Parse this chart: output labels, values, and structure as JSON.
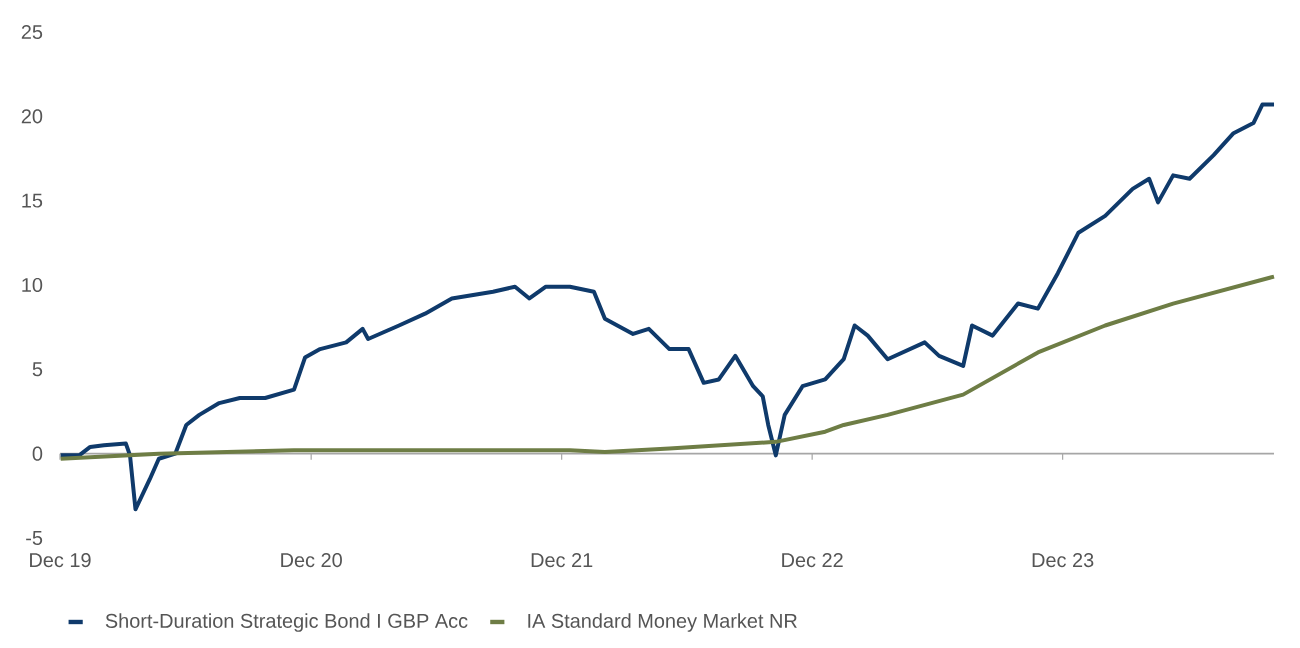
{
  "chart_data": {
    "type": "line",
    "x": [
      "2020-01-01",
      "2020-01-28",
      "2020-02-13",
      "2020-03-04",
      "2020-04-05",
      "2020-04-11",
      "2020-04-19",
      "2020-05-10",
      "2020-05-23",
      "2020-06-16",
      "2020-07-02",
      "2020-07-21",
      "2020-08-19",
      "2020-09-18",
      "2020-10-25",
      "2020-12-06",
      "2020-12-22",
      "2021-01-13",
      "2021-02-20",
      "2021-03-16",
      "2021-03-24",
      "2021-05-08",
      "2021-06-15",
      "2021-07-24",
      "2021-09-22",
      "2021-10-24",
      "2021-11-14",
      "2021-12-08",
      "2022-01-12",
      "2022-02-16",
      "2022-03-04",
      "2022-04-14",
      "2022-05-07",
      "2022-06-06",
      "2022-07-04",
      "2022-07-26",
      "2022-08-17",
      "2022-09-10",
      "2022-10-06",
      "2022-10-20",
      "2022-10-28",
      "2022-11-08",
      "2022-11-21",
      "2022-12-17",
      "2023-01-19",
      "2023-02-15",
      "2023-03-03",
      "2023-03-22",
      "2023-04-20",
      "2023-06-13",
      "2023-07-04",
      "2023-08-08",
      "2023-08-21",
      "2023-09-20",
      "2023-10-27",
      "2023-11-25",
      "2023-12-24",
      "2024-01-23",
      "2024-03-02",
      "2024-04-11",
      "2024-05-05",
      "2024-05-18",
      "2024-06-09",
      "2024-07-03",
      "2024-08-07",
      "2024-09-05",
      "2024-10-04",
      "2024-10-17",
      "2024-11-03"
    ],
    "series": [
      {
        "name": "Short-Duration Strategic Bond I GBP Acc",
        "color": "#0f3a6b",
        "values": [
          -0.1,
          -0.1,
          0.4,
          0.5,
          0.6,
          -0.1,
          -3.3,
          -1.5,
          -0.3,
          0,
          1.7,
          2.3,
          3.0,
          3.3,
          3.3,
          3.8,
          5.7,
          6.2,
          6.6,
          7.4,
          6.8,
          7.6,
          8.3,
          9.2,
          9.6,
          9.9,
          9.2,
          9.9,
          9.9,
          9.6,
          8.0,
          7.1,
          7.4,
          6.2,
          6.2,
          4.2,
          4.4,
          5.8,
          4.0,
          3.4,
          1.7,
          -0.1,
          2.3,
          4.0,
          4.4,
          5.6,
          7.6,
          7.0,
          5.6,
          6.6,
          5.8,
          5.2,
          7.6,
          7.0,
          8.9,
          8.6,
          10.7,
          13.1,
          14.1,
          15.7,
          16.3,
          14.9,
          16.5,
          16.3,
          17.7,
          19.0,
          19.6,
          20.7,
          20.7
        ]
      },
      {
        "name": "IA Standard Money Market NR",
        "color": "#6e7d45",
        "x": [
          "2020-01-01",
          "2020-05-23",
          "2020-12-06",
          "2022-01-12",
          "2022-03-04",
          "2022-06-06",
          "2022-11-08",
          "2023-01-19",
          "2023-02-15",
          "2023-04-20",
          "2023-08-08",
          "2023-11-25",
          "2024-03-02",
          "2024-06-09",
          "2024-11-03"
        ],
        "values": [
          -0.3,
          0,
          0.2,
          0.2,
          0.1,
          0.3,
          0.7,
          1.3,
          1.7,
          2.3,
          3.5,
          6.0,
          7.6,
          8.9,
          10.5
        ]
      }
    ],
    "xlim": [
      "2019-12-31",
      "2024-11-03"
    ],
    "xticks": [
      {
        "value": "2019-12-31",
        "label": "Dec 19"
      },
      {
        "value": "2020-12-31",
        "label": "Dec 20"
      },
      {
        "value": "2021-12-31",
        "label": "Dec 21"
      },
      {
        "value": "2022-12-31",
        "label": "Dec 22"
      },
      {
        "value": "2023-12-31",
        "label": "Dec 23"
      }
    ],
    "ylim": [
      -5,
      25
    ],
    "yticks": [
      -5,
      0,
      5,
      10,
      15,
      20,
      25
    ],
    "ref_lines": [
      {
        "axis": "y",
        "value": 0,
        "color": "#a6a6a6"
      }
    ],
    "grid": false,
    "legend": "bottom",
    "marker": "none",
    "line_style": "solid"
  }
}
